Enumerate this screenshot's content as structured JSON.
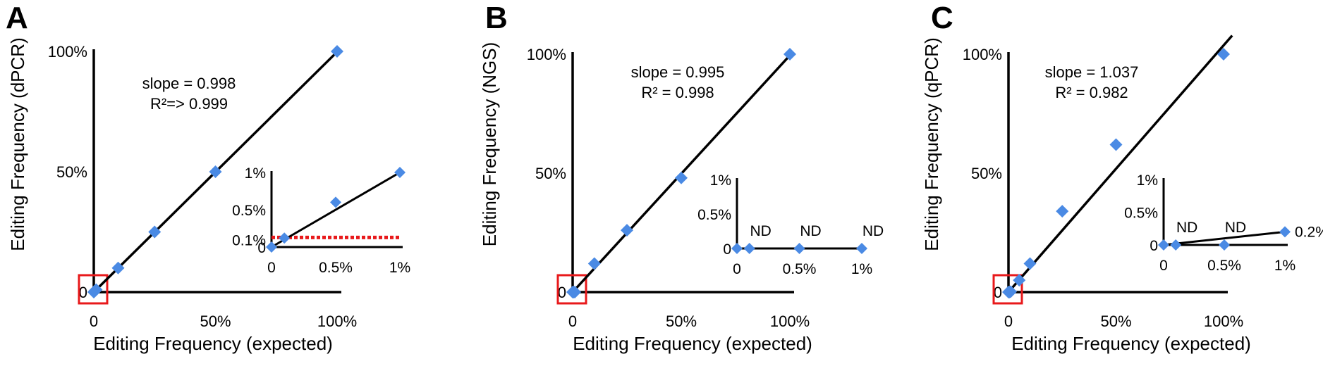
{
  "figure": {
    "marker_color": "#4a8ae4",
    "threshold_color": "#e8191b",
    "zoom_box_color": "#e8191b",
    "panels": [
      {
        "letter": "A",
        "ylabel": "Editing Frequency (dPCR)",
        "xlabel": "Editing Frequency (expected)",
        "slope_text": "slope = 0.998",
        "r2_text": "R²=> 0.999",
        "x_ticks": [
          "0",
          "50%",
          "100%"
        ],
        "y_ticks": [
          "0",
          "50%",
          "100%"
        ],
        "inset": {
          "x_ticks": [
            "0",
            "0.5%",
            "1%"
          ],
          "y_ticks": [
            "0",
            "0.1%",
            "0.5%",
            "1%"
          ],
          "nd_labels": [],
          "end_label": ""
        }
      },
      {
        "letter": "B",
        "ylabel": "Editing Frequency (NGS)",
        "xlabel": "Editing Frequency (expected)",
        "slope_text": "slope = 0.995",
        "r2_text": "R² = 0.998",
        "x_ticks": [
          "0",
          "50%",
          "100%"
        ],
        "y_ticks": [
          "0",
          "50%",
          "100%"
        ],
        "inset": {
          "x_ticks": [
            "0",
            "0.5%",
            "1%"
          ],
          "y_ticks": [
            "0",
            "0.5%",
            "1%"
          ],
          "nd_labels": [
            "ND",
            "ND",
            "ND"
          ],
          "end_label": ""
        }
      },
      {
        "letter": "C",
        "ylabel": "Editing Frequency (qPCR)",
        "xlabel": "Editing Frequency (expected)",
        "slope_text": "slope = 1.037",
        "r2_text": "R² = 0.982",
        "x_ticks": [
          "0",
          "50%",
          "100%"
        ],
        "y_ticks": [
          "0",
          "50%",
          "100%"
        ],
        "inset": {
          "x_ticks": [
            "0",
            "0.5%",
            "1%"
          ],
          "y_ticks": [
            "0",
            "0.5%",
            "1%"
          ],
          "nd_labels": [
            "ND",
            "ND"
          ],
          "end_label": "0.2%"
        }
      }
    ]
  },
  "chart_data": [
    {
      "type": "scatter",
      "panel": "A",
      "x": [
        0,
        0.1,
        0.5,
        1,
        10,
        25,
        50,
        100
      ],
      "y": [
        0,
        0.12,
        0.6,
        1.0,
        10,
        25,
        50,
        100
      ],
      "xlim": [
        0,
        100
      ],
      "ylim": [
        0,
        100
      ],
      "fit": {
        "slope": 0.998,
        "r2": "> 0.999"
      },
      "inset": {
        "x": [
          0,
          0.1,
          0.5,
          1
        ],
        "y": [
          0,
          0.12,
          0.6,
          1.0
        ],
        "xlim": [
          0,
          1
        ],
        "ylim": [
          0,
          1
        ],
        "threshold": 0.1
      }
    },
    {
      "type": "scatter",
      "panel": "B",
      "x": [
        0,
        0.1,
        0.5,
        1,
        10,
        25,
        50,
        100
      ],
      "y": [
        0,
        0,
        0,
        0,
        12,
        26,
        48,
        100
      ],
      "xlim": [
        0,
        100
      ],
      "ylim": [
        0,
        100
      ],
      "fit": {
        "slope": 0.995,
        "r2": 0.998
      },
      "inset": {
        "x": [
          0,
          0.1,
          0.5,
          1
        ],
        "y": [
          0,
          0,
          0,
          0
        ],
        "xlim": [
          0,
          1
        ],
        "ylim": [
          0,
          1
        ]
      }
    },
    {
      "type": "scatter",
      "panel": "C",
      "x": [
        0,
        0.1,
        0.5,
        1,
        5,
        10,
        25,
        50,
        100
      ],
      "y": [
        0,
        0,
        0,
        0.2,
        5,
        12,
        34,
        62,
        100
      ],
      "xlim": [
        0,
        100
      ],
      "ylim": [
        0,
        100
      ],
      "fit": {
        "slope": 1.037,
        "r2": 0.982
      },
      "inset": {
        "x": [
          0,
          0.1,
          0.5,
          1
        ],
        "y": [
          0,
          0,
          0,
          0.2
        ],
        "xlim": [
          0,
          1
        ],
        "ylim": [
          0,
          1
        ]
      }
    }
  ]
}
